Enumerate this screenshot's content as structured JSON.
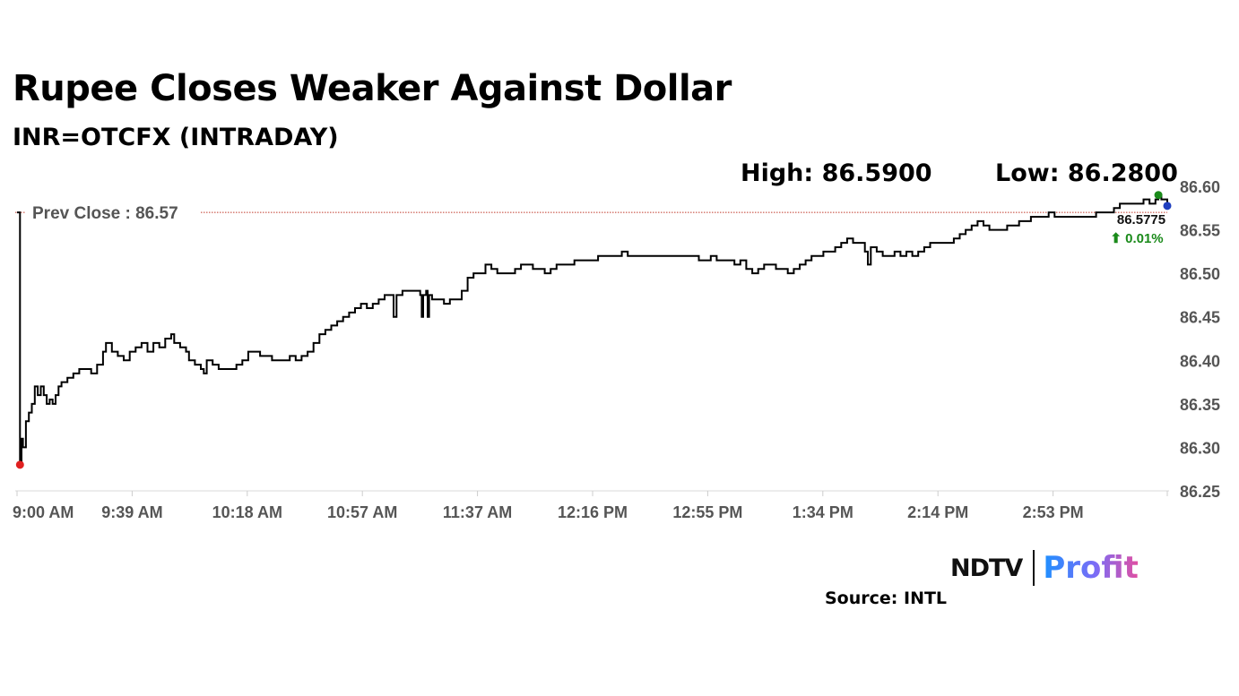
{
  "header": {
    "title": "Rupee Closes Weaker Against Dollar",
    "subtitle": "INR=OTCFX (INTRADAY)",
    "high_label": "High: 86.5900",
    "low_label": "Low: 86.2800"
  },
  "chart_data": {
    "type": "line",
    "title": "Rupee Closes Weaker Against Dollar",
    "subtitle": "INR=OTCFX (INTRADAY)",
    "xlabel": "",
    "ylabel": "",
    "x_range_minutes": [
      0,
      388
    ],
    "ylim": [
      86.25,
      86.6
    ],
    "yticks": [
      "86.60",
      "86.55",
      "86.50",
      "86.45",
      "86.40",
      "86.35",
      "86.30",
      "86.25"
    ],
    "xticks": [
      "9:00 AM",
      "9:39 AM",
      "10:18 AM",
      "10:57 AM",
      "11:37 AM",
      "12:16 PM",
      "12:55 PM",
      "1:34 PM",
      "2:14 PM",
      "2:53 PM"
    ],
    "grid": false,
    "prev_close": {
      "label": "Prev Close : 86.57",
      "value": 86.57,
      "color": "#c0392b"
    },
    "last": {
      "value": "86.5775",
      "change": "⬆ 0.01%",
      "change_color": "#1a8a1a"
    },
    "markers": [
      {
        "name": "low-marker",
        "x": 1,
        "y": 86.28,
        "color": "#e02020"
      },
      {
        "name": "high-marker",
        "x": 385,
        "y": 86.59,
        "color": "#1a8a1a"
      },
      {
        "name": "last-marker",
        "x": 388,
        "y": 86.5775,
        "color": "#1f3fbf"
      }
    ],
    "series": [
      {
        "line_color": "#000000",
        "points": [
          [
            0,
            86.57
          ],
          [
            0.5,
            86.57
          ],
          [
            1,
            86.28
          ],
          [
            1.5,
            86.31
          ],
          [
            2,
            86.3
          ],
          [
            3,
            86.33
          ],
          [
            4,
            86.34
          ],
          [
            5,
            86.35
          ],
          [
            6,
            86.37
          ],
          [
            7,
            86.36
          ],
          [
            8,
            86.37
          ],
          [
            9,
            86.36
          ],
          [
            10,
            86.35
          ],
          [
            11,
            86.355
          ],
          [
            12,
            86.35
          ],
          [
            13,
            86.36
          ],
          [
            14,
            86.37
          ],
          [
            15,
            86.375
          ],
          [
            17,
            86.38
          ],
          [
            19,
            86.385
          ],
          [
            21,
            86.39
          ],
          [
            23,
            86.39
          ],
          [
            25,
            86.385
          ],
          [
            27,
            86.395
          ],
          [
            29,
            86.41
          ],
          [
            30,
            86.42
          ],
          [
            32,
            86.41
          ],
          [
            34,
            86.405
          ],
          [
            36,
            86.4
          ],
          [
            38,
            86.41
          ],
          [
            40,
            86.415
          ],
          [
            42,
            86.42
          ],
          [
            44,
            86.41
          ],
          [
            46,
            86.42
          ],
          [
            48,
            86.415
          ],
          [
            50,
            86.425
          ],
          [
            52,
            86.43
          ],
          [
            53,
            86.42
          ],
          [
            55,
            86.415
          ],
          [
            57,
            86.41
          ],
          [
            58,
            86.4
          ],
          [
            60,
            86.395
          ],
          [
            62,
            86.39
          ],
          [
            63,
            86.385
          ],
          [
            64,
            86.4
          ],
          [
            66,
            86.395
          ],
          [
            68,
            86.39
          ],
          [
            70,
            86.39
          ],
          [
            72,
            86.39
          ],
          [
            74,
            86.395
          ],
          [
            76,
            86.4
          ],
          [
            78,
            86.41
          ],
          [
            80,
            86.41
          ],
          [
            82,
            86.405
          ],
          [
            84,
            86.405
          ],
          [
            86,
            86.4
          ],
          [
            88,
            86.4
          ],
          [
            90,
            86.4
          ],
          [
            92,
            86.405
          ],
          [
            94,
            86.4
          ],
          [
            96,
            86.405
          ],
          [
            98,
            86.41
          ],
          [
            100,
            86.42
          ],
          [
            102,
            86.43
          ],
          [
            104,
            86.435
          ],
          [
            106,
            86.44
          ],
          [
            108,
            86.445
          ],
          [
            110,
            86.45
          ],
          [
            112,
            86.455
          ],
          [
            114,
            86.46
          ],
          [
            116,
            86.465
          ],
          [
            118,
            86.46
          ],
          [
            120,
            86.465
          ],
          [
            122,
            86.47
          ],
          [
            124,
            86.475
          ],
          [
            126,
            86.475
          ],
          [
            127,
            86.45
          ],
          [
            128,
            86.475
          ],
          [
            130,
            86.48
          ],
          [
            132,
            86.48
          ],
          [
            134,
            86.48
          ],
          [
            136,
            86.475
          ],
          [
            136.5,
            86.45
          ],
          [
            137,
            86.475
          ],
          [
            138,
            86.48
          ],
          [
            138.5,
            86.45
          ],
          [
            139,
            86.475
          ],
          [
            140,
            86.47
          ],
          [
            142,
            86.47
          ],
          [
            144,
            86.465
          ],
          [
            146,
            86.47
          ],
          [
            148,
            86.47
          ],
          [
            150,
            86.48
          ],
          [
            152,
            86.495
          ],
          [
            154,
            86.5
          ],
          [
            156,
            86.5
          ],
          [
            158,
            86.51
          ],
          [
            160,
            86.505
          ],
          [
            162,
            86.5
          ],
          [
            164,
            86.5
          ],
          [
            166,
            86.5
          ],
          [
            168,
            86.505
          ],
          [
            170,
            86.51
          ],
          [
            172,
            86.51
          ],
          [
            174,
            86.505
          ],
          [
            176,
            86.505
          ],
          [
            178,
            86.5
          ],
          [
            180,
            86.505
          ],
          [
            182,
            86.51
          ],
          [
            184,
            86.51
          ],
          [
            186,
            86.51
          ],
          [
            188,
            86.515
          ],
          [
            190,
            86.515
          ],
          [
            192,
            86.515
          ],
          [
            194,
            86.515
          ],
          [
            196,
            86.52
          ],
          [
            198,
            86.52
          ],
          [
            200,
            86.52
          ],
          [
            202,
            86.52
          ],
          [
            204,
            86.525
          ],
          [
            206,
            86.52
          ],
          [
            208,
            86.52
          ],
          [
            210,
            86.52
          ],
          [
            212,
            86.52
          ],
          [
            214,
            86.52
          ],
          [
            216,
            86.52
          ],
          [
            218,
            86.52
          ],
          [
            220,
            86.52
          ],
          [
            222,
            86.52
          ],
          [
            224,
            86.52
          ],
          [
            226,
            86.52
          ],
          [
            228,
            86.52
          ],
          [
            230,
            86.515
          ],
          [
            232,
            86.515
          ],
          [
            234,
            86.52
          ],
          [
            236,
            86.515
          ],
          [
            238,
            86.515
          ],
          [
            240,
            86.515
          ],
          [
            242,
            86.51
          ],
          [
            244,
            86.515
          ],
          [
            246,
            86.505
          ],
          [
            248,
            86.5
          ],
          [
            250,
            86.505
          ],
          [
            252,
            86.51
          ],
          [
            254,
            86.51
          ],
          [
            256,
            86.505
          ],
          [
            258,
            86.505
          ],
          [
            260,
            86.5
          ],
          [
            262,
            86.505
          ],
          [
            264,
            86.51
          ],
          [
            266,
            86.515
          ],
          [
            268,
            86.52
          ],
          [
            270,
            86.52
          ],
          [
            272,
            86.525
          ],
          [
            274,
            86.525
          ],
          [
            276,
            86.53
          ],
          [
            278,
            86.535
          ],
          [
            280,
            86.54
          ],
          [
            282,
            86.535
          ],
          [
            284,
            86.535
          ],
          [
            286,
            86.525
          ],
          [
            287,
            86.51
          ],
          [
            288,
            86.53
          ],
          [
            290,
            86.525
          ],
          [
            292,
            86.52
          ],
          [
            294,
            86.52
          ],
          [
            296,
            86.525
          ],
          [
            298,
            86.52
          ],
          [
            300,
            86.525
          ],
          [
            302,
            86.52
          ],
          [
            304,
            86.525
          ],
          [
            306,
            86.53
          ],
          [
            308,
            86.535
          ],
          [
            310,
            86.535
          ],
          [
            312,
            86.535
          ],
          [
            314,
            86.535
          ],
          [
            316,
            86.54
          ],
          [
            318,
            86.545
          ],
          [
            320,
            86.55
          ],
          [
            322,
            86.555
          ],
          [
            324,
            86.56
          ],
          [
            326,
            86.555
          ],
          [
            328,
            86.55
          ],
          [
            330,
            86.55
          ],
          [
            332,
            86.55
          ],
          [
            334,
            86.555
          ],
          [
            336,
            86.555
          ],
          [
            338,
            86.56
          ],
          [
            340,
            86.56
          ],
          [
            342,
            86.565
          ],
          [
            344,
            86.565
          ],
          [
            346,
            86.565
          ],
          [
            348,
            86.57
          ],
          [
            350,
            86.565
          ],
          [
            352,
            86.565
          ],
          [
            354,
            86.565
          ],
          [
            356,
            86.565
          ],
          [
            358,
            86.565
          ],
          [
            360,
            86.565
          ],
          [
            362,
            86.565
          ],
          [
            364,
            86.57
          ],
          [
            366,
            86.57
          ],
          [
            368,
            86.57
          ],
          [
            370,
            86.575
          ],
          [
            372,
            86.58
          ],
          [
            374,
            86.58
          ],
          [
            376,
            86.58
          ],
          [
            378,
            86.58
          ],
          [
            380,
            86.585
          ],
          [
            382,
            86.58
          ],
          [
            384,
            86.585
          ],
          [
            385,
            86.59
          ],
          [
            386,
            86.585
          ],
          [
            388,
            86.5775
          ]
        ]
      }
    ]
  },
  "branding": {
    "ndtv": "NDTV",
    "profit": "Profit",
    "source": "Source: INTL"
  }
}
